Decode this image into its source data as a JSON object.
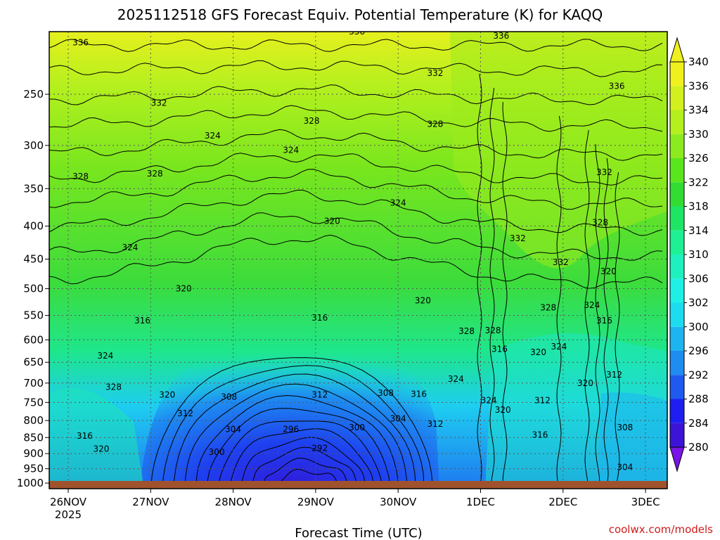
{
  "chart_data": {
    "type": "heatmap",
    "title": "2025112518 GFS Forecast Equiv. Potential Temperature (K) for KAQQ",
    "xlabel": "Forecast Time (UTC)",
    "ylabel": "",
    "credit": "coolwx.com/models",
    "x_ticks": [
      "26NOV",
      "27NOV",
      "28NOV",
      "29NOV",
      "30NOV",
      "1DEC",
      "2DEC",
      "3DEC"
    ],
    "x_year": "2025",
    "y_ticks": [
      250,
      300,
      350,
      400,
      450,
      500,
      550,
      600,
      650,
      700,
      750,
      800,
      850,
      900,
      950,
      1000
    ],
    "y_scale": "log-pressure (hPa), top ~200 to bottom ~1020",
    "colorbar": {
      "levels": [
        280,
        284,
        288,
        292,
        296,
        300,
        302,
        306,
        310,
        314,
        318,
        322,
        326,
        330,
        334,
        336,
        340
      ],
      "colors": [
        "#3c14d8",
        "#1e1ef0",
        "#1e5af0",
        "#1e8cf0",
        "#1eb4f0",
        "#1edcf0",
        "#1ef0e6",
        "#1ef0be",
        "#1ef096",
        "#1ee664",
        "#32dc32",
        "#5ae61e",
        "#8ceb1e",
        "#b4f01e",
        "#d2f01e",
        "#f0f01e"
      ],
      "extend": "both"
    },
    "grid": true,
    "contour_labels": [
      {
        "value": "336",
        "day": 0.15,
        "p": 208
      },
      {
        "value": "332",
        "day": 1.1,
        "p": 258
      },
      {
        "value": "328",
        "day": 0.15,
        "p": 335
      },
      {
        "value": "328",
        "day": 1.05,
        "p": 332
      },
      {
        "value": "324",
        "day": 0.75,
        "p": 432
      },
      {
        "value": "324",
        "day": 0.45,
        "p": 635
      },
      {
        "value": "328",
        "day": 0.55,
        "p": 710
      },
      {
        "value": "316",
        "day": 0.2,
        "p": 845
      },
      {
        "value": "320",
        "day": 0.4,
        "p": 885
      },
      {
        "value": "324",
        "day": 1.75,
        "p": 290
      },
      {
        "value": "328",
        "day": 2.95,
        "p": 275
      },
      {
        "value": "324",
        "day": 2.7,
        "p": 305
      },
      {
        "value": "336",
        "day": 3.5,
        "p": 200
      },
      {
        "value": "332",
        "day": 4.45,
        "p": 232
      },
      {
        "value": "328",
        "day": 4.45,
        "p": 278
      },
      {
        "value": "336",
        "day": 5.25,
        "p": 203
      },
      {
        "value": "336",
        "day": 6.65,
        "p": 243
      },
      {
        "value": "332",
        "day": 6.5,
        "p": 330
      },
      {
        "value": "324",
        "day": 4.0,
        "p": 368
      },
      {
        "value": "320",
        "day": 3.2,
        "p": 393
      },
      {
        "value": "320",
        "day": 1.4,
        "p": 500
      },
      {
        "value": "316",
        "day": 0.9,
        "p": 560
      },
      {
        "value": "316",
        "day": 3.05,
        "p": 555
      },
      {
        "value": "320",
        "day": 4.3,
        "p": 522
      },
      {
        "value": "320",
        "day": 1.2,
        "p": 730
      },
      {
        "value": "312",
        "day": 1.42,
        "p": 780
      },
      {
        "value": "308",
        "day": 1.95,
        "p": 735
      },
      {
        "value": "312",
        "day": 3.05,
        "p": 730
      },
      {
        "value": "308",
        "day": 3.85,
        "p": 725
      },
      {
        "value": "316",
        "day": 4.25,
        "p": 728
      },
      {
        "value": "304",
        "day": 4.0,
        "p": 795
      },
      {
        "value": "312",
        "day": 4.45,
        "p": 810
      },
      {
        "value": "304",
        "day": 2.0,
        "p": 825
      },
      {
        "value": "296",
        "day": 2.7,
        "p": 825
      },
      {
        "value": "300",
        "day": 3.5,
        "p": 820
      },
      {
        "value": "300",
        "day": 1.8,
        "p": 895
      },
      {
        "value": "292",
        "day": 3.05,
        "p": 883
      },
      {
        "value": "332",
        "day": 5.45,
        "p": 418
      },
      {
        "value": "332",
        "day": 5.97,
        "p": 455
      },
      {
        "value": "328",
        "day": 5.82,
        "p": 535
      },
      {
        "value": "328",
        "day": 6.45,
        "p": 395
      },
      {
        "value": "320",
        "day": 6.55,
        "p": 470
      },
      {
        "value": "324",
        "day": 6.35,
        "p": 530
      },
      {
        "value": "316",
        "day": 6.5,
        "p": 560
      },
      {
        "value": "328",
        "day": 4.83,
        "p": 582
      },
      {
        "value": "328",
        "day": 5.15,
        "p": 580
      },
      {
        "value": "316",
        "day": 5.23,
        "p": 620
      },
      {
        "value": "320",
        "day": 5.7,
        "p": 627
      },
      {
        "value": "324",
        "day": 5.95,
        "p": 615
      },
      {
        "value": "324",
        "day": 4.7,
        "p": 690
      },
      {
        "value": "324",
        "day": 5.1,
        "p": 745
      },
      {
        "value": "320",
        "day": 5.27,
        "p": 770
      },
      {
        "value": "312",
        "day": 5.75,
        "p": 745
      },
      {
        "value": "320",
        "day": 6.27,
        "p": 700
      },
      {
        "value": "312",
        "day": 6.62,
        "p": 680
      },
      {
        "value": "316",
        "day": 5.72,
        "p": 842
      },
      {
        "value": "308",
        "day": 6.75,
        "p": 820
      },
      {
        "value": "304",
        "day": 6.75,
        "p": 945
      }
    ]
  }
}
